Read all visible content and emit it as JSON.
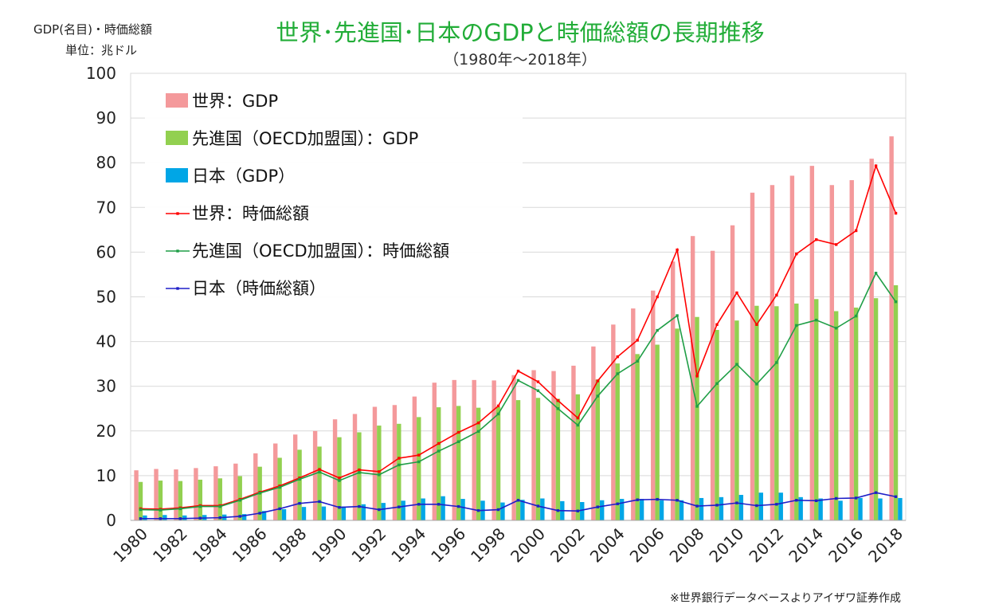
{
  "chart_data": {
    "type": "bar+line",
    "title": "世界･先進国･日本のGDPと時価総額の長期推移",
    "subtitle": "（1980年～2018年）",
    "ylabel_line1": "GDP(名目)・時価総額",
    "ylabel_line2": "単位：兆ドル",
    "source": "※世界銀行データベースよりアイザワ証券作成",
    "ylim": [
      0,
      100
    ],
    "yticks": [
      "0",
      "10",
      "20",
      "30",
      "40",
      "50",
      "60",
      "70",
      "80",
      "90",
      "100"
    ],
    "x": [
      1980,
      1981,
      1982,
      1983,
      1984,
      1985,
      1986,
      1987,
      1988,
      1989,
      1990,
      1991,
      1992,
      1993,
      1994,
      1995,
      1996,
      1997,
      1998,
      1999,
      2000,
      2001,
      2002,
      2003,
      2004,
      2005,
      2006,
      2007,
      2008,
      2009,
      2010,
      2011,
      2012,
      2013,
      2014,
      2015,
      2016,
      2017,
      2018
    ],
    "xtick_labels": [
      "1980",
      "1982",
      "1984",
      "1986",
      "1988",
      "1990",
      "1992",
      "1994",
      "1996",
      "1998",
      "2000",
      "2002",
      "2004",
      "2006",
      "2008",
      "2010",
      "2012",
      "2014",
      "2016",
      "2018"
    ],
    "bar_series": [
      {
        "name": "世界：GDP",
        "color": "#f4999b",
        "values": [
          11.2,
          11.5,
          11.4,
          11.7,
          12.1,
          12.7,
          15.0,
          17.2,
          19.2,
          20.0,
          22.6,
          23.8,
          25.4,
          25.8,
          27.7,
          30.8,
          31.4,
          31.4,
          31.3,
          32.5,
          33.6,
          33.4,
          34.6,
          38.9,
          43.8,
          47.4,
          51.4,
          57.9,
          63.6,
          60.3,
          66.0,
          73.3,
          75.0,
          77.1,
          79.3,
          75.0,
          76.1,
          80.9,
          85.9
        ]
      },
      {
        "name": "先進国（OECD加盟国）：GDP",
        "color": "#92d050",
        "values": [
          8.6,
          8.9,
          8.8,
          9.1,
          9.4,
          9.9,
          12.0,
          14.0,
          15.8,
          16.5,
          18.6,
          19.7,
          21.2,
          21.6,
          23.1,
          25.3,
          25.6,
          25.2,
          25.3,
          26.9,
          27.4,
          27.2,
          28.2,
          31.5,
          35.1,
          37.2,
          39.3,
          42.9,
          45.5,
          42.6,
          44.7,
          48.0,
          47.9,
          48.5,
          49.5,
          46.8,
          47.6,
          49.7,
          52.6
        ]
      },
      {
        "name": "日本（GDP）",
        "color": "#00a6e6",
        "values": [
          1.1,
          1.2,
          1.1,
          1.2,
          1.3,
          1.4,
          2.1,
          2.5,
          3.0,
          3.1,
          3.1,
          3.6,
          3.9,
          4.4,
          4.9,
          5.4,
          4.8,
          4.4,
          4.0,
          4.6,
          4.9,
          4.3,
          4.1,
          4.5,
          4.8,
          4.8,
          4.5,
          4.5,
          5.0,
          5.2,
          5.7,
          6.2,
          6.2,
          5.2,
          4.9,
          4.4,
          5.0,
          4.9,
          5.0
        ]
      }
    ],
    "line_series": [
      {
        "name": "世界：時価総額",
        "color": "#ff0000",
        "values": [
          2.6,
          2.5,
          2.8,
          3.3,
          3.3,
          4.7,
          6.3,
          7.7,
          9.5,
          11.4,
          9.5,
          11.3,
          10.9,
          13.9,
          14.6,
          17.2,
          19.7,
          21.8,
          25.6,
          33.4,
          31.0,
          26.8,
          22.9,
          31.2,
          36.6,
          40.3,
          50.0,
          60.5,
          32.3,
          43.8,
          50.9,
          43.8,
          50.4,
          59.6,
          62.8,
          61.7,
          64.8,
          79.3,
          68.7
        ]
      },
      {
        "name": "先進国（OECD加盟国）：時価総額",
        "color": "#1f9e46",
        "values": [
          2.4,
          2.3,
          2.6,
          3.1,
          3.1,
          4.5,
          6.1,
          7.4,
          9.2,
          10.8,
          8.9,
          10.7,
          10.2,
          12.4,
          13.1,
          15.5,
          17.6,
          19.9,
          23.8,
          31.3,
          29.0,
          25.0,
          21.3,
          27.8,
          32.8,
          35.6,
          42.5,
          45.8,
          25.5,
          30.6,
          34.9,
          30.5,
          35.3,
          43.6,
          44.8,
          43.0,
          45.7,
          55.3,
          48.9
        ]
      },
      {
        "name": "日本（時価総額）",
        "color": "#1e1ec8",
        "values": [
          0.4,
          0.4,
          0.4,
          0.5,
          0.6,
          0.9,
          1.6,
          2.6,
          3.8,
          4.2,
          2.9,
          3.1,
          2.4,
          3.0,
          3.6,
          3.6,
          3.1,
          2.2,
          2.4,
          4.5,
          3.2,
          2.2,
          2.1,
          3.0,
          3.7,
          4.6,
          4.7,
          4.5,
          3.2,
          3.4,
          3.9,
          3.3,
          3.6,
          4.5,
          4.4,
          4.9,
          5.0,
          6.2,
          5.3
        ]
      }
    ],
    "legend_position": "top-left"
  }
}
